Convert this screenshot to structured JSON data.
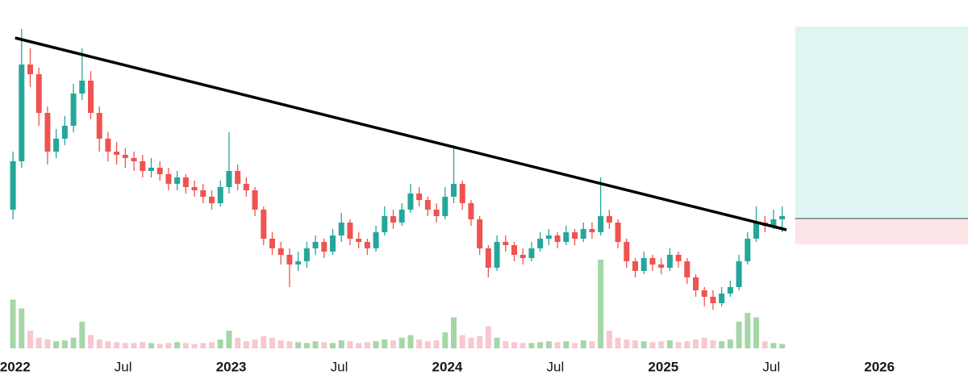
{
  "chart_data": {
    "type": "candlestick",
    "x": [
      2021.99,
      2022.03,
      2022.07,
      2022.11,
      2022.15,
      2022.19,
      2022.23,
      2022.27,
      2022.31,
      2022.35,
      2022.39,
      2022.43,
      2022.47,
      2022.51,
      2022.55,
      2022.59,
      2022.63,
      2022.67,
      2022.71,
      2022.75,
      2022.79,
      2022.83,
      2022.87,
      2022.91,
      2022.95,
      2022.99,
      2023.03,
      2023.07,
      2023.11,
      2023.15,
      2023.19,
      2023.23,
      2023.27,
      2023.31,
      2023.35,
      2023.39,
      2023.43,
      2023.47,
      2023.51,
      2023.55,
      2023.59,
      2023.63,
      2023.67,
      2023.71,
      2023.75,
      2023.79,
      2023.83,
      2023.87,
      2023.91,
      2023.95,
      2023.99,
      2024.03,
      2024.07,
      2024.11,
      2024.15,
      2024.19,
      2024.23,
      2024.27,
      2024.31,
      2024.35,
      2024.39,
      2024.43,
      2024.47,
      2024.51,
      2024.55,
      2024.59,
      2024.63,
      2024.67,
      2024.71,
      2024.75,
      2024.79,
      2024.83,
      2024.87,
      2024.91,
      2024.95,
      2024.99,
      2025.03,
      2025.07,
      2025.11,
      2025.15,
      2025.19,
      2025.23,
      2025.27,
      2025.31,
      2025.35,
      2025.39,
      2025.43,
      2025.47,
      2025.51,
      2025.55
    ],
    "open": [
      40,
      55,
      85,
      82,
      70,
      58,
      62,
      66,
      76,
      80,
      70,
      62,
      58,
      57,
      56,
      55,
      52,
      53,
      51,
      48,
      50,
      47,
      46,
      44,
      42,
      47,
      52,
      48,
      46,
      40,
      31,
      28,
      26,
      23,
      24,
      28,
      30,
      27,
      32,
      36,
      31,
      30,
      28,
      33,
      38,
      36,
      40,
      45,
      43,
      40,
      38,
      44,
      48,
      42,
      37,
      28,
      22,
      30,
      29,
      26,
      25,
      28,
      31,
      32,
      30,
      33,
      31,
      34,
      33,
      38,
      36,
      30,
      24,
      21,
      25,
      23,
      22,
      26,
      24,
      19,
      15,
      13,
      11,
      14,
      16,
      24,
      31,
      36,
      35,
      37
    ],
    "high": [
      58,
      96,
      90,
      84,
      72,
      65,
      69,
      79,
      90,
      83,
      72,
      64,
      61,
      59,
      58,
      57,
      56,
      55,
      53,
      52,
      51,
      49,
      48,
      46,
      49,
      64,
      54,
      50,
      47,
      41,
      33,
      30,
      28,
      27,
      30,
      32,
      31,
      34,
      39,
      37,
      33,
      31,
      35,
      41,
      40,
      42,
      48,
      47,
      44,
      42,
      47,
      60,
      49,
      43,
      38,
      29,
      32,
      32,
      30,
      28,
      30,
      33,
      34,
      33,
      35,
      34,
      36,
      36,
      50,
      40,
      37,
      31,
      25,
      27,
      26,
      25,
      28,
      27,
      25,
      20,
      16,
      15,
      16,
      18,
      26,
      33,
      41,
      38,
      40,
      41
    ],
    "low": [
      37,
      53,
      78,
      66,
      54,
      56,
      60,
      64,
      74,
      68,
      58,
      55,
      54,
      53,
      52,
      50,
      50,
      49,
      46,
      46,
      45,
      44,
      42,
      40,
      41,
      45,
      46,
      44,
      38,
      29,
      26,
      23,
      16,
      21,
      22,
      26,
      25,
      26,
      30,
      29,
      28,
      26,
      27,
      32,
      34,
      35,
      39,
      41,
      38,
      36,
      37,
      42,
      40,
      35,
      26,
      19,
      21,
      27,
      24,
      23,
      24,
      27,
      29,
      28,
      29,
      29,
      30,
      31,
      32,
      34,
      28,
      22,
      19,
      20,
      21,
      20,
      21,
      22,
      17,
      13,
      10,
      9,
      10,
      13,
      15,
      23,
      30,
      33,
      34,
      33
    ],
    "close": [
      55,
      85,
      82,
      70,
      58,
      62,
      66,
      76,
      80,
      70,
      62,
      58,
      57,
      56,
      55,
      52,
      53,
      51,
      48,
      50,
      47,
      46,
      44,
      42,
      47,
      52,
      48,
      46,
      40,
      31,
      28,
      26,
      23,
      24,
      28,
      30,
      27,
      32,
      36,
      31,
      30,
      28,
      33,
      38,
      36,
      40,
      45,
      43,
      40,
      38,
      44,
      48,
      42,
      37,
      28,
      22,
      30,
      29,
      26,
      25,
      28,
      31,
      32,
      30,
      33,
      31,
      34,
      33,
      38,
      36,
      30,
      24,
      21,
      25,
      23,
      22,
      26,
      24,
      19,
      15,
      13,
      11,
      14,
      16,
      24,
      31,
      36,
      35,
      37,
      38
    ],
    "up_color": "#26a69a",
    "down_color": "#ef5350",
    "volume": {
      "values": [
        55,
        45,
        20,
        12,
        10,
        8,
        9,
        12,
        30,
        15,
        10,
        8,
        7,
        6,
        6,
        7,
        6,
        5,
        6,
        7,
        6,
        5,
        6,
        7,
        10,
        20,
        12,
        8,
        10,
        14,
        12,
        9,
        8,
        7,
        6,
        8,
        7,
        6,
        9,
        8,
        6,
        7,
        8,
        10,
        9,
        12,
        15,
        10,
        8,
        9,
        18,
        35,
        15,
        12,
        14,
        25,
        12,
        8,
        7,
        6,
        6,
        7,
        8,
        7,
        8,
        6,
        9,
        8,
        100,
        20,
        12,
        10,
        9,
        8,
        7,
        8,
        9,
        7,
        8,
        10,
        12,
        9,
        8,
        10,
        30,
        40,
        35,
        8,
        6,
        5
      ],
      "up_color": "#a5d6a7",
      "down_color": "#f8c8d0",
      "lim": [
        0,
        100
      ]
    },
    "xlim": [
      2021.93,
      2026.41
    ],
    "xticks": [
      2022,
      {
        "value": 2022.5,
        "label": "Jul"
      },
      2023,
      {
        "value": 2023.5,
        "label": "Jul"
      },
      2024,
      {
        "value": 2024.5,
        "label": "Jul"
      },
      2025,
      {
        "value": 2025.5,
        "label": "Jul"
      },
      2026
    ],
    "ylim": [
      0,
      100
    ],
    "trendline": {
      "x": [
        2022.0,
        2025.57
      ],
      "y": [
        93.25,
        33.75
      ],
      "color": "#000000"
    },
    "position": {
      "x": [
        2025.61,
        2026.41
      ],
      "entry": 37.25,
      "target": 96.75,
      "stop": 29.25,
      "target_color": "#dff5f1",
      "stop_color": "#fde4e7"
    }
  }
}
